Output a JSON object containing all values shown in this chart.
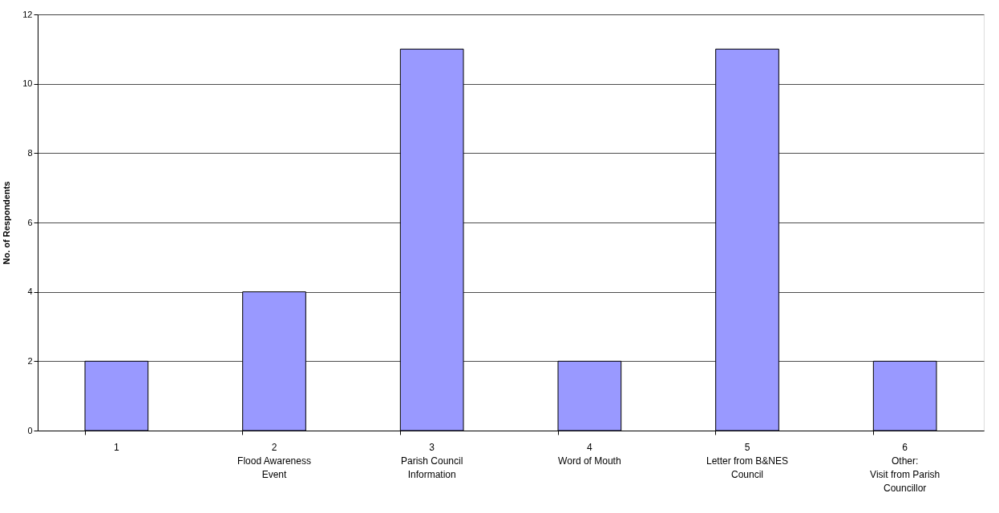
{
  "chart_data": {
    "type": "bar",
    "ylabel": "No. of Respondents",
    "categories": [
      "1",
      "2\n\nFlood Awareness\nEvent",
      "3\n\nParish Council\nInformation",
      "4\n\nWord of Mouth",
      "5\n\nLetter from B&NES\nCouncil",
      "6\n\nOther:\nVisit from Parish\nCouncillor"
    ],
    "values": [
      2,
      4,
      11,
      2,
      11,
      2
    ],
    "color": "#9999ff",
    "ylim": [
      0,
      12
    ],
    "yticks": [
      0,
      2,
      4,
      6,
      8,
      10,
      12
    ],
    "grid": "y"
  }
}
